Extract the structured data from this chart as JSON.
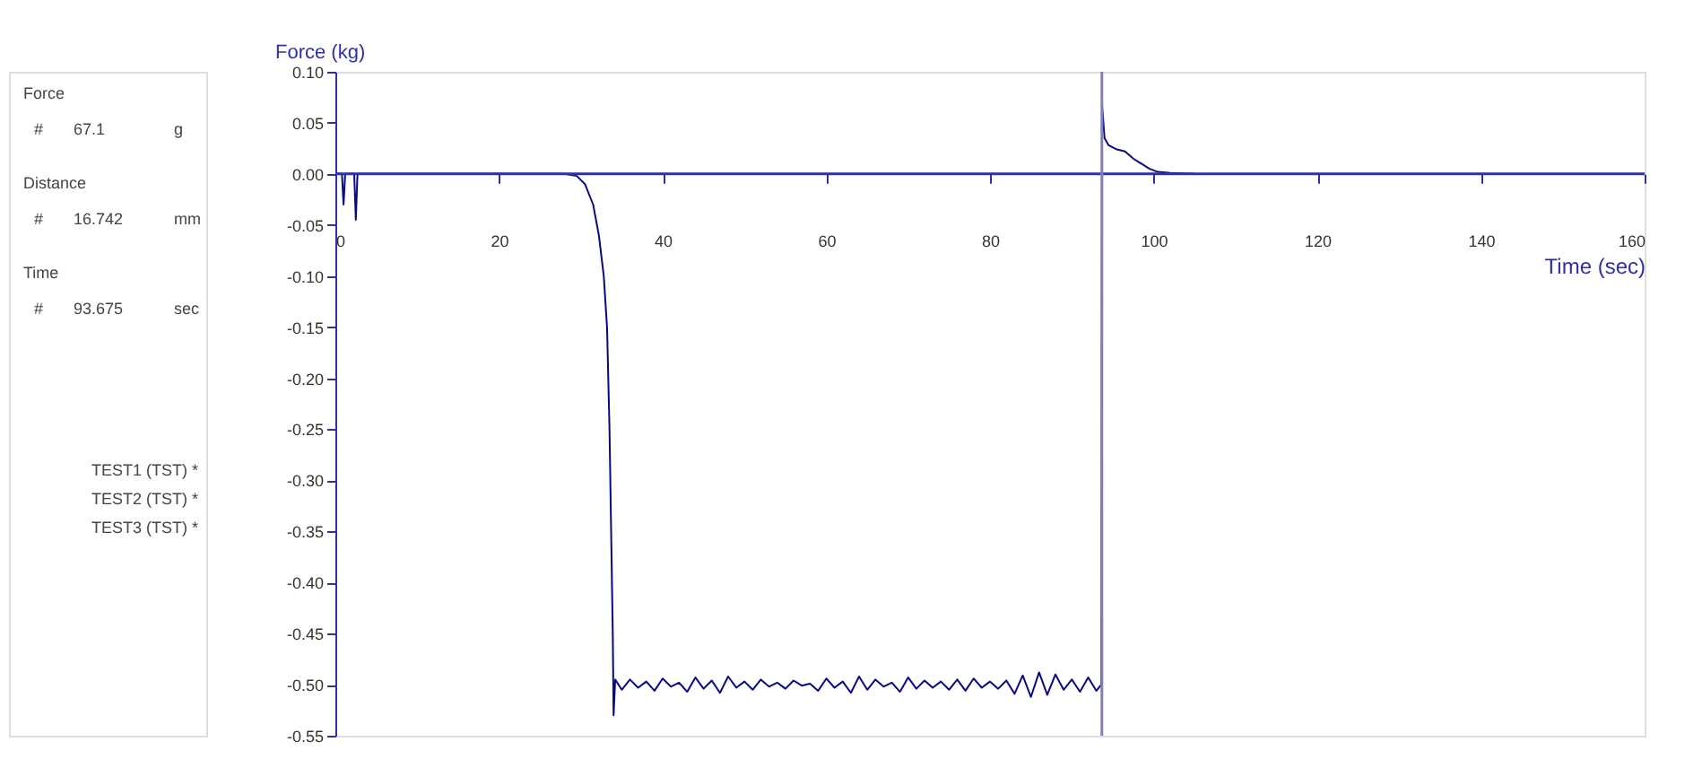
{
  "chart_data": {
    "type": "line",
    "xlabel": "Time (sec)",
    "ylabel": "Force (kg)",
    "xlim": [
      0,
      160
    ],
    "xticks": [
      0,
      20,
      40,
      60,
      80,
      100,
      120,
      140,
      160
    ],
    "ylim": [
      -0.55,
      0.1
    ],
    "yticks": [
      {
        "value": 0.1,
        "label": "0.10"
      },
      {
        "value": 0.05,
        "label": "0.05"
      },
      {
        "value": 0,
        "label": "0.00"
      },
      {
        "value": -0.05,
        "label": "-0.05"
      },
      {
        "value": -0.1,
        "label": "-0.10"
      },
      {
        "value": -0.15,
        "label": "-0.15"
      },
      {
        "value": -0.2,
        "label": "-0.20"
      },
      {
        "value": -0.25,
        "label": "-0.25"
      },
      {
        "value": -0.3,
        "label": "-0.30"
      },
      {
        "value": -0.35,
        "label": "-0.35"
      },
      {
        "value": -0.4,
        "label": "-0.40"
      },
      {
        "value": -0.45,
        "label": "-0.45"
      },
      {
        "value": -0.5,
        "label": "-0.50"
      },
      {
        "value": -0.55,
        "label": "-0.55"
      }
    ],
    "grid": false,
    "marker": "none",
    "line_style": "solid",
    "series": [
      {
        "color": "#0a0a80",
        "x": [
          0,
          0.8,
          1,
          1.2,
          2.3,
          2.5,
          2.7,
          28,
          29.5,
          30.5,
          31.5,
          32.2,
          32.8,
          33.2,
          33.5,
          33.7,
          33.9,
          34,
          34.2,
          35,
          36,
          37,
          38,
          39,
          40,
          41,
          42,
          43,
          44,
          45,
          46,
          47,
          48,
          49,
          50,
          51,
          52,
          53,
          54,
          55,
          56,
          57,
          58,
          59,
          60,
          61,
          62,
          63,
          64,
          65,
          66,
          67,
          68,
          69,
          70,
          71,
          72,
          73,
          74,
          75,
          76,
          77,
          78,
          79,
          80,
          81,
          82,
          83,
          84,
          85,
          86,
          87,
          88,
          89,
          90,
          91,
          92,
          93,
          93.6,
          93.7,
          94,
          94.5,
          95.5,
          96.5,
          97.5,
          98.5,
          99.5,
          100.5,
          102,
          105
        ],
        "values": [
          0,
          0,
          -0.03,
          0,
          0,
          -0.045,
          0,
          0,
          -0.002,
          -0.01,
          -0.03,
          -0.06,
          -0.1,
          -0.15,
          -0.25,
          -0.35,
          -0.45,
          -0.53,
          -0.495,
          -0.505,
          -0.495,
          -0.503,
          -0.497,
          -0.506,
          -0.494,
          -0.502,
          -0.498,
          -0.507,
          -0.493,
          -0.504,
          -0.496,
          -0.508,
          -0.492,
          -0.503,
          -0.497,
          -0.505,
          -0.495,
          -0.502,
          -0.498,
          -0.504,
          -0.496,
          -0.501,
          -0.499,
          -0.506,
          -0.494,
          -0.503,
          -0.497,
          -0.508,
          -0.492,
          -0.505,
          -0.495,
          -0.502,
          -0.498,
          -0.507,
          -0.493,
          -0.504,
          -0.496,
          -0.503,
          -0.497,
          -0.505,
          -0.495,
          -0.506,
          -0.494,
          -0.503,
          -0.497,
          -0.504,
          -0.496,
          -0.509,
          -0.491,
          -0.512,
          -0.488,
          -0.51,
          -0.49,
          -0.505,
          -0.495,
          -0.507,
          -0.493,
          -0.506,
          -0.5,
          0.067,
          0.035,
          0.028,
          0.024,
          0.022,
          0.015,
          0.01,
          0.005,
          0.002,
          0.001,
          0
        ]
      }
    ],
    "ref_lines": [
      {
        "axis": "y",
        "value": 0,
        "color": "#3030a0"
      },
      {
        "axis": "x",
        "value": 93.675,
        "color": "#8080c0"
      }
    ],
    "annotations": [
      "Force",
      "#",
      "67.1",
      "g",
      "Distance",
      "#",
      "16.742",
      "mm",
      "Time",
      "#",
      "93.675",
      "sec",
      "TEST1 (TST) *",
      "TEST2 (TST) *",
      "TEST3 (TST) *"
    ]
  }
}
